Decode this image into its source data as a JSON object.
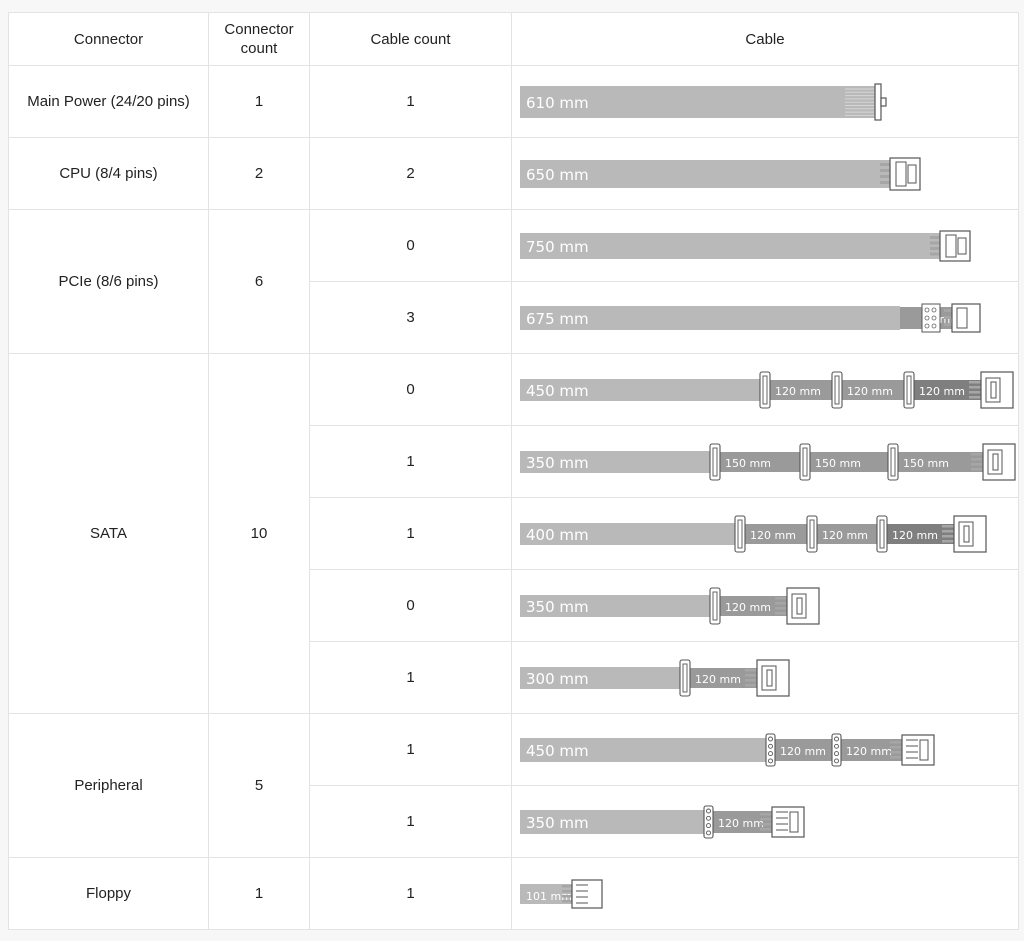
{
  "headers": {
    "connector": "Connector",
    "connector_count_line1": "Connector",
    "connector_count_line2": "count",
    "cable_count": "Cable count",
    "cable": "Cable"
  },
  "groups": [
    {
      "connector": "Main Power (24/20 pins)",
      "count": "1",
      "cables": [
        {
          "cable_count": "1",
          "length": "610 mm",
          "type": "atx24",
          "segments": []
        }
      ]
    },
    {
      "connector": "CPU (8/4 pins)",
      "count": "2",
      "cables": [
        {
          "cable_count": "2",
          "length": "650 mm",
          "type": "eps8",
          "segments": []
        }
      ]
    },
    {
      "connector": "PCIe (8/6 pins)",
      "count": "6",
      "cables": [
        {
          "cable_count": "0",
          "length": "750 mm",
          "type": "pcie",
          "segments": []
        },
        {
          "cable_count": "3",
          "length": "675 mm",
          "type": "pcie-dual",
          "segments": [
            "75 mm"
          ]
        }
      ]
    },
    {
      "connector": "SATA",
      "count": "10",
      "cables": [
        {
          "cable_count": "0",
          "length": "450 mm",
          "type": "sata",
          "segments": [
            "120 mm",
            "120 mm",
            "120 mm"
          ]
        },
        {
          "cable_count": "1",
          "length": "350 mm",
          "type": "sata",
          "segments": [
            "150 mm",
            "150 mm",
            "150 mm"
          ]
        },
        {
          "cable_count": "1",
          "length": "400 mm",
          "type": "sata",
          "segments": [
            "120 mm",
            "120 mm",
            "120 mm"
          ]
        },
        {
          "cable_count": "0",
          "length": "350 mm",
          "type": "sata",
          "segments": [
            "120 mm"
          ]
        },
        {
          "cable_count": "1",
          "length": "300 mm",
          "type": "sata",
          "segments": [
            "120 mm"
          ]
        }
      ]
    },
    {
      "connector": "Peripheral",
      "count": "5",
      "cables": [
        {
          "cable_count": "1",
          "length": "450 mm",
          "type": "molex",
          "segments": [
            "120 mm",
            "120 mm"
          ]
        },
        {
          "cable_count": "1",
          "length": "350 mm",
          "type": "molex",
          "segments": [
            "120 mm"
          ]
        }
      ]
    },
    {
      "connector": "Floppy",
      "count": "1",
      "cables": [
        {
          "cable_count": "1",
          "length": "101 mm",
          "type": "floppy",
          "segments": []
        }
      ]
    }
  ],
  "colors": {
    "cable_main": "#b9b9b9",
    "cable_segment": "#9a9a9a",
    "cable_segment_dark": "#7f7f7f",
    "border": "#e3e3e3"
  }
}
